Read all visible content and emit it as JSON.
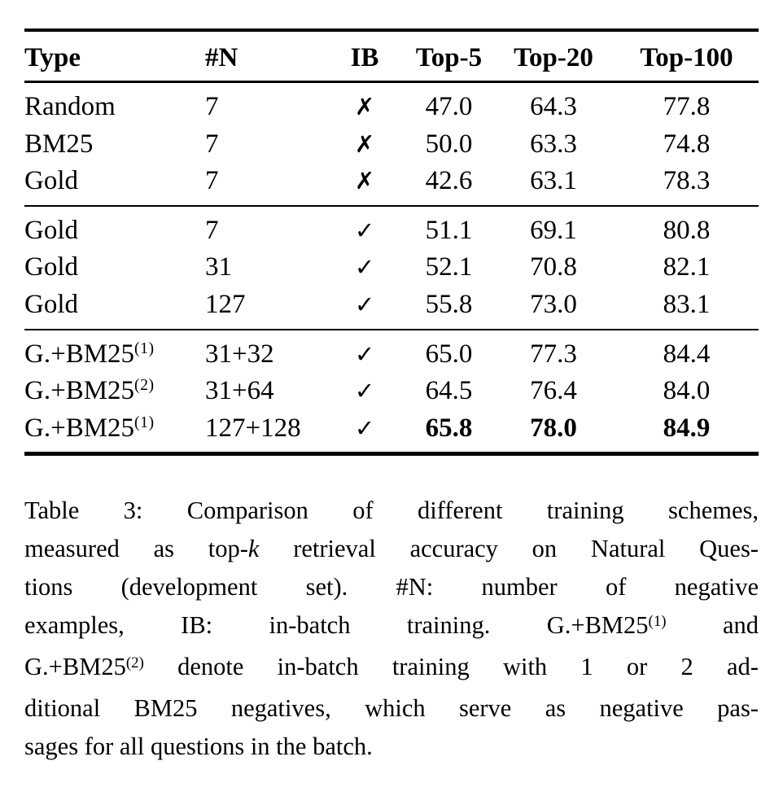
{
  "page": {
    "background": "#ffffff",
    "text_color": "#000000"
  },
  "table": {
    "columns": [
      {
        "key": "type",
        "label": "Type",
        "align": "left"
      },
      {
        "key": "n",
        "label": "#N",
        "align": "left"
      },
      {
        "key": "ib",
        "label": "IB",
        "align": "center"
      },
      {
        "key": "top5",
        "label": "Top-5",
        "align": "center"
      },
      {
        "key": "top20",
        "label": "Top-20",
        "align": "center"
      },
      {
        "key": "top100",
        "label": "Top-100",
        "align": "center"
      }
    ],
    "ib_true_glyph": "✓",
    "ib_false_glyph": "✗",
    "groups": [
      {
        "name": "no-in-batch",
        "rows": [
          {
            "type": "Random",
            "sup": "",
            "n": "7",
            "ib": false,
            "top5": "47.0",
            "top20": "64.3",
            "top100": "77.8",
            "bold_metrics": false
          },
          {
            "type": "BM25",
            "sup": "",
            "n": "7",
            "ib": false,
            "top5": "50.0",
            "top20": "63.3",
            "top100": "74.8",
            "bold_metrics": false
          },
          {
            "type": "Gold",
            "sup": "",
            "n": "7",
            "ib": false,
            "top5": "42.6",
            "top20": "63.1",
            "top100": "78.3",
            "bold_metrics": false
          }
        ]
      },
      {
        "name": "gold-in-batch",
        "rows": [
          {
            "type": "Gold",
            "sup": "",
            "n": "7",
            "ib": true,
            "top5": "51.1",
            "top20": "69.1",
            "top100": "80.8",
            "bold_metrics": false
          },
          {
            "type": "Gold",
            "sup": "",
            "n": "31",
            "ib": true,
            "top5": "52.1",
            "top20": "70.8",
            "top100": "82.1",
            "bold_metrics": false
          },
          {
            "type": "Gold",
            "sup": "",
            "n": "127",
            "ib": true,
            "top5": "55.8",
            "top20": "73.0",
            "top100": "83.1",
            "bold_metrics": false
          }
        ]
      },
      {
        "name": "gold-plus-bm25-in-batch",
        "rows": [
          {
            "type": "G.+BM25",
            "sup": "(1)",
            "n": "31+32",
            "ib": true,
            "top5": "65.0",
            "top20": "77.3",
            "top100": "84.4",
            "bold_metrics": false
          },
          {
            "type": "G.+BM25",
            "sup": "(2)",
            "n": "31+64",
            "ib": true,
            "top5": "64.5",
            "top20": "76.4",
            "top100": "84.0",
            "bold_metrics": false
          },
          {
            "type": "G.+BM25",
            "sup": "(1)",
            "n": "127+128",
            "ib": true,
            "top5": "65.8",
            "top20": "78.0",
            "top100": "84.9",
            "bold_metrics": true
          }
        ]
      }
    ]
  },
  "caption": {
    "lines": [
      {
        "justify": true,
        "segments": [
          {
            "t": "Table 3: Comparison of different training schemes,"
          }
        ]
      },
      {
        "justify": true,
        "segments": [
          {
            "t": "measured as top-"
          },
          {
            "t": "k",
            "style": "italic"
          },
          {
            "t": " retrieval accuracy on Natural Ques-"
          }
        ]
      },
      {
        "justify": true,
        "segments": [
          {
            "t": "tions (development set). #N: number of negative"
          }
        ]
      },
      {
        "justify": true,
        "segments": [
          {
            "t": "examples, IB: in-batch training. G.+BM25"
          },
          {
            "t": "(1)",
            "style": "sup"
          },
          {
            "t": " and"
          }
        ]
      },
      {
        "justify": true,
        "segments": [
          {
            "t": "G.+BM25"
          },
          {
            "t": "(2)",
            "style": "sup"
          },
          {
            "t": " denote in-batch training with 1 or 2 ad-"
          }
        ]
      },
      {
        "justify": true,
        "segments": [
          {
            "t": "ditional BM25 negatives, which serve as negative pas-"
          }
        ]
      },
      {
        "justify": false,
        "segments": [
          {
            "t": "sages for all questions in the batch."
          }
        ]
      }
    ]
  }
}
